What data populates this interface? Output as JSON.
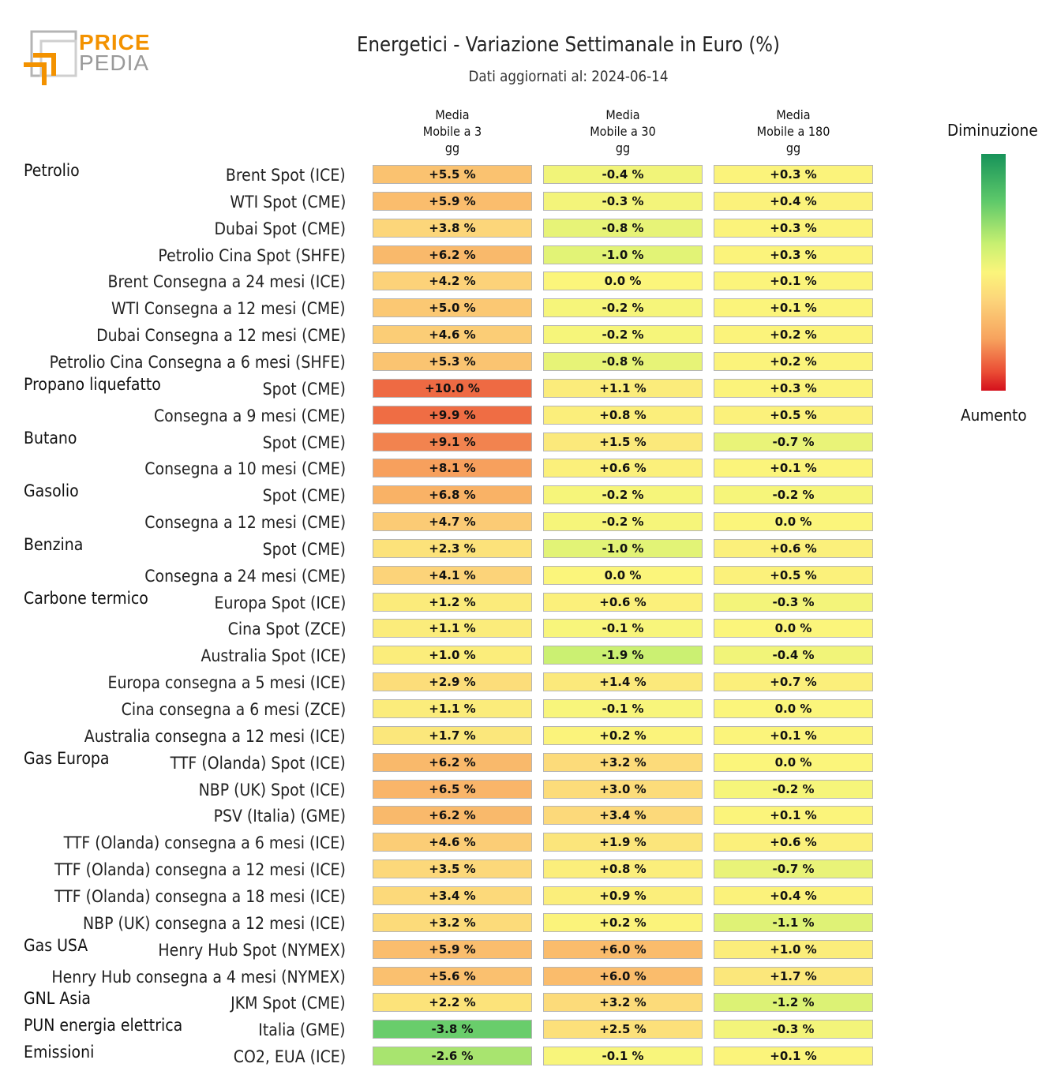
{
  "logo": {
    "line1": "PRICE",
    "line2": "PEDIA"
  },
  "title": "Energetici - Variazione Settimanale in Euro (%)",
  "subtitle": "Dati aggiornati al: 2024-06-14",
  "columns": [
    [
      "Media",
      "Mobile a 3",
      "gg"
    ],
    [
      "Media",
      "Mobile a 30",
      "gg"
    ],
    [
      "Media",
      "Mobile a 180",
      "gg"
    ]
  ],
  "legend": {
    "top": "Diminuzione",
    "bottom": "Aumento"
  },
  "colors": {
    "max_increase": "#d4101c",
    "neutral": "#fbf57b",
    "max_decrease": "#17935a"
  },
  "chart_data": {
    "type": "table",
    "title": "Energetici - Variazione Settimanale in Euro (%)",
    "subtitle": "Dati aggiornati al: 2024-06-14",
    "unit": "%",
    "series_names": [
      "Media Mobile a 3 gg",
      "Media Mobile a 30 gg",
      "Media Mobile a 180 gg"
    ],
    "groups": [
      {
        "name": "Petrolio",
        "rows": [
          {
            "label": "Brent Spot (ICE)",
            "values": [
              "+5.5 %",
              "-0.4 %",
              "+0.3 %"
            ]
          },
          {
            "label": "WTI Spot (CME)",
            "values": [
              "+5.9 %",
              "-0.3 %",
              "+0.4 %"
            ]
          },
          {
            "label": "Dubai Spot (CME)",
            "values": [
              "+3.8 %",
              "-0.8 %",
              "+0.3 %"
            ]
          },
          {
            "label": "Petrolio Cina Spot (SHFE)",
            "values": [
              "+6.2 %",
              "-1.0 %",
              "+0.3 %"
            ]
          },
          {
            "label": "Brent Consegna a 24 mesi (ICE)",
            "values": [
              "+4.2 %",
              "0.0 %",
              "+0.1 %"
            ]
          },
          {
            "label": "WTI Consegna a 12 mesi (CME)",
            "values": [
              "+5.0 %",
              "-0.2 %",
              "+0.1 %"
            ]
          },
          {
            "label": "Dubai Consegna a 12 mesi (CME)",
            "values": [
              "+4.6 %",
              "-0.2 %",
              "+0.2 %"
            ]
          },
          {
            "label": "Petrolio Cina Consegna a 6 mesi (SHFE)",
            "values": [
              "+5.3 %",
              "-0.8 %",
              "+0.2 %"
            ]
          }
        ]
      },
      {
        "name": "Propano liquefatto",
        "rows": [
          {
            "label": "Spot (CME)",
            "values": [
              "+10.0 %",
              "+1.1 %",
              "+0.3 %"
            ]
          },
          {
            "label": "Consegna a 9 mesi (CME)",
            "values": [
              "+9.9 %",
              "+0.8 %",
              "+0.5 %"
            ]
          }
        ]
      },
      {
        "name": "Butano",
        "rows": [
          {
            "label": "Spot (CME)",
            "values": [
              "+9.1 %",
              "+1.5 %",
              "-0.7 %"
            ]
          },
          {
            "label": "Consegna a 10 mesi (CME)",
            "values": [
              "+8.1 %",
              "+0.6 %",
              "+0.1 %"
            ]
          }
        ]
      },
      {
        "name": "Gasolio",
        "rows": [
          {
            "label": "Spot (CME)",
            "values": [
              "+6.8 %",
              "-0.2 %",
              "-0.2 %"
            ]
          },
          {
            "label": "Consegna a 12 mesi (CME)",
            "values": [
              "+4.7 %",
              "-0.2 %",
              "0.0 %"
            ]
          }
        ]
      },
      {
        "name": "Benzina",
        "rows": [
          {
            "label": "Spot (CME)",
            "values": [
              "+2.3 %",
              "-1.0 %",
              "+0.6 %"
            ]
          },
          {
            "label": "Consegna a 24 mesi (CME)",
            "values": [
              "+4.1 %",
              "0.0 %",
              "+0.5 %"
            ]
          }
        ]
      },
      {
        "name": "Carbone termico",
        "rows": [
          {
            "label": "Europa Spot (ICE)",
            "values": [
              "+1.2 %",
              "+0.6 %",
              "-0.3 %"
            ]
          },
          {
            "label": "Cina Spot (ZCE)",
            "values": [
              "+1.1 %",
              "-0.1 %",
              "0.0 %"
            ]
          },
          {
            "label": "Australia Spot (ICE)",
            "values": [
              "+1.0 %",
              "-1.9 %",
              "-0.4 %"
            ]
          },
          {
            "label": "Europa consegna a 5 mesi (ICE)",
            "values": [
              "+2.9 %",
              "+1.4 %",
              "+0.7 %"
            ]
          },
          {
            "label": "Cina consegna a 6 mesi (ZCE)",
            "values": [
              "+1.1 %",
              "-0.1 %",
              "0.0 %"
            ]
          },
          {
            "label": "Australia consegna a 12 mesi (ICE)",
            "values": [
              "+1.7 %",
              "+0.2 %",
              "+0.1 %"
            ]
          }
        ]
      },
      {
        "name": "Gas Europa",
        "rows": [
          {
            "label": "TTF (Olanda) Spot (ICE)",
            "values": [
              "+6.2 %",
              "+3.2 %",
              "0.0 %"
            ]
          },
          {
            "label": "NBP (UK) Spot (ICE)",
            "values": [
              "+6.5 %",
              "+3.0 %",
              "-0.2 %"
            ]
          },
          {
            "label": "PSV (Italia) (GME)",
            "values": [
              "+6.2 %",
              "+3.4 %",
              "+0.1 %"
            ]
          },
          {
            "label": "TTF (Olanda) consegna a 6 mesi (ICE)",
            "values": [
              "+4.6 %",
              "+1.9 %",
              "+0.6 %"
            ]
          },
          {
            "label": "TTF (Olanda) consegna a 12 mesi (ICE)",
            "values": [
              "+3.5 %",
              "+0.8 %",
              "-0.7 %"
            ]
          },
          {
            "label": "TTF (Olanda) consegna a 18 mesi (ICE)",
            "values": [
              "+3.4 %",
              "+0.9 %",
              "+0.4 %"
            ]
          },
          {
            "label": "NBP (UK) consegna a 12 mesi (ICE)",
            "values": [
              "+3.2 %",
              "+0.2 %",
              "-1.1 %"
            ]
          }
        ]
      },
      {
        "name": "Gas USA",
        "rows": [
          {
            "label": "Henry Hub Spot (NYMEX)",
            "values": [
              "+5.9 %",
              "+6.0 %",
              "+1.0 %"
            ]
          },
          {
            "label": "Henry Hub consegna a 4 mesi (NYMEX)",
            "values": [
              "+5.6 %",
              "+6.0 %",
              "+1.7 %"
            ]
          }
        ]
      },
      {
        "name": "GNL Asia",
        "rows": [
          {
            "label": "JKM Spot (CME)",
            "values": [
              "+2.2 %",
              "+3.2 %",
              "-1.2 %"
            ]
          }
        ]
      },
      {
        "name": "PUN energia elettrica",
        "rows": [
          {
            "label": "Italia (GME)",
            "values": [
              "-3.8 %",
              "+2.5 %",
              "-0.3 %"
            ]
          }
        ]
      },
      {
        "name": "Emissioni",
        "rows": [
          {
            "label": "CO2, EUA (ICE)",
            "values": [
              "-2.6 %",
              "-0.1 %",
              "+0.1 %"
            ]
          }
        ]
      }
    ]
  }
}
